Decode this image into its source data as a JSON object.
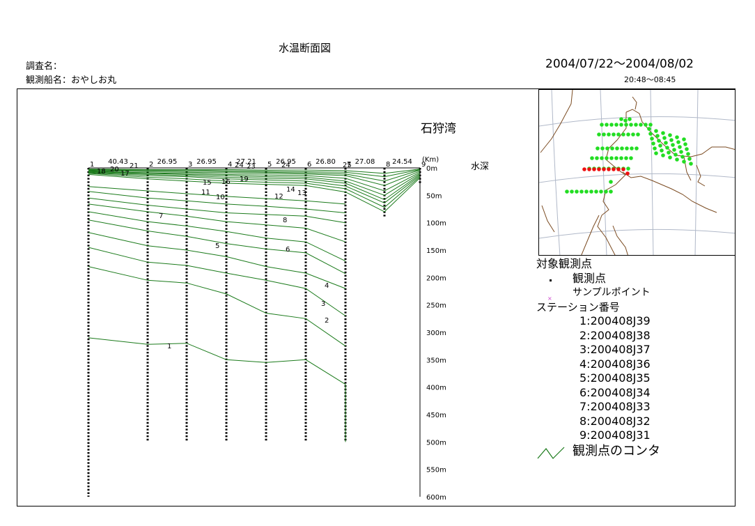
{
  "header": {
    "title": "水温断面図",
    "survey_name": "調査名：",
    "ship_name": "観測船名：おやしお丸",
    "date_range": "2004/07/22～2004/08/02",
    "time_range": "20:48～08:45"
  },
  "section": {
    "area_name": "石狩湾",
    "depth_label": "水深",
    "km_unit_label": "(Km)"
  },
  "chart_data": {
    "type": "line",
    "title": "水温断面図",
    "ylabel": "水深",
    "ylim": [
      0,
      600
    ],
    "y_tick_labels": [
      "0m",
      "50m",
      "100m",
      "150m",
      "200m",
      "250m",
      "300m",
      "350m",
      "400m",
      "450m",
      "500m",
      "550m",
      "600m"
    ],
    "stations": [
      {
        "label": "1",
        "max_depth": 600
      },
      {
        "label": "2",
        "max_depth": 500
      },
      {
        "label": "3",
        "max_depth": 500
      },
      {
        "label": "4",
        "max_depth": 500
      },
      {
        "label": "5",
        "max_depth": 500
      },
      {
        "label": "6",
        "max_depth": 500
      },
      {
        "label": "7",
        "max_depth": 500
      },
      {
        "label": "8",
        "max_depth": 90
      },
      {
        "label": "9",
        "max_depth": 30
      }
    ],
    "station_distances": [
      "40.43",
      "26.95",
      "26.95",
      "27.21",
      "26.95",
      "26.80",
      "27.08",
      "24.54"
    ],
    "contour_labels": [
      "1",
      "2",
      "3",
      "4",
      "5",
      "6",
      "7",
      "8",
      "10",
      "11",
      "12",
      "13",
      "14",
      "15",
      "16",
      "17",
      "18",
      "19",
      "20",
      "21",
      "23",
      "24",
      "24",
      "25"
    ]
  },
  "legend": {
    "title": "対象観測点",
    "obs_point": "観測点",
    "sample_point": "サンプルポイント",
    "station_header": "ステーション番号",
    "stations": [
      "1:200408J39",
      "2:200408J38",
      "3:200408J37",
      "4:200408J36",
      "5:200408J35",
      "6:200408J34",
      "7:200408J33",
      "8:200408J32",
      "9:200408J31"
    ],
    "contour_label": "観測点のコンタ"
  },
  "colors": {
    "contour": "#1a7a1a",
    "map_dot": "#22dd22",
    "map_dot_selected": "#ee1111",
    "coastline": "#7a4a20",
    "grid": "#b0b8c8",
    "sample_point": "#cc44cc"
  }
}
